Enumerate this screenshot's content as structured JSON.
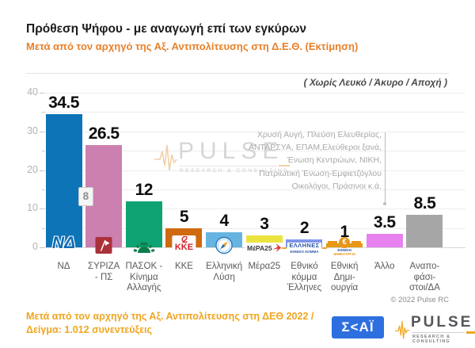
{
  "header": {
    "title": "Πρόθεση Ψήφου - με αναγωγή επί των εγκύρων",
    "subtitle": "Μετά από τον αρχηγό της Αξ. Αντιπολίτευσης στη Δ.Ε.Θ.  (Εκτίμηση)",
    "note": "( Χωρίς Λευκό / Άκυρο / Αποχή )"
  },
  "chart_data": {
    "type": "bar",
    "title": "Πρόθεση Ψήφου - με αναγωγή επί των εγκύρων",
    "subtitle": "Μετά από τον αρχηγό της Αξ. Αντιπολίτευσης στη Δ.Ε.Θ. (Εκτίμηση)",
    "ylim": [
      0,
      40
    ],
    "yticks_major": [
      "0",
      "10",
      "20",
      "30",
      "40"
    ],
    "ytick_minor_step": 5,
    "grid": "horizontal every 5, light gray",
    "legend": "none",
    "categories": [
      "ΝΔ",
      "ΣΥΡΙΖΑ - ΠΣ",
      "ΠΑΣΟΚ - Κίνημα Αλλαγής",
      "ΚΚΕ",
      "Ελληνική Λύση",
      "Μέρα25",
      "Εθνικό κόμμα Έλληνες",
      "Εθνική Δημιουργία",
      "Άλλο",
      "Αναποφάσιστοι/ΔΑ"
    ],
    "category_display": [
      "ΝΔ",
      "ΣΥΡΙΖΑ\n- ΠΣ",
      "ΠΑΣΟΚ -\nΚίνημα\nΑλλαγής",
      "ΚΚΕ",
      "Ελληνική\nΛύση",
      "Μέρα25",
      "Εθνικό\nκόμμα\nΈλληνες",
      "Εθνική\nΔημι-\nουργία",
      "Άλλο",
      "Αναπο-\nφάσι-\nστοι/ΔΑ"
    ],
    "values": [
      34.5,
      26.5,
      12,
      5,
      4,
      3,
      2,
      1,
      3.5,
      8.5
    ],
    "value_labels": [
      "34.5",
      "26.5",
      "12",
      "5",
      "4",
      "3",
      "2",
      "1",
      "3.5",
      "8.5"
    ],
    "bar_colors": [
      "#0e74b8",
      "#cc80b0",
      "#0fa374",
      "#cf6a10",
      "#68b4e0",
      "#ece43e",
      "#7e95e8",
      "#e39a10",
      "#e781ef",
      "#a6a6a6"
    ],
    "bar_logo_icons": [
      "nd-party-logo",
      "syriza-party-logo",
      "pasok-party-logo",
      "kke-party-logo",
      "elliniki-lysi-party-logo",
      "mera25-party-logo",
      "ellines-party-logo",
      "ethniki-dimiourgia-party-logo",
      null,
      null
    ],
    "gap_label": {
      "text": "8",
      "between": [
        "ΝΔ",
        "ΣΥΡΙΖΑ - ΠΣ"
      ]
    },
    "annotation": {
      "target": "Άλλο",
      "lines": [
        "Χρυσή Αυγή, Πλεύση Ελευθερίας,",
        "ΑΝΤΑΡΣΥΑ, ΕΠΑΜ,Ελεύθεροι ξανά,",
        "Ένωση Κεντρώων,  ΝΙΚΗ,",
        "Πατριωτική Ένωση-Εμφιετζόγλου",
        "Οικολόγοι, Πράσινοι  κ.ά."
      ]
    }
  },
  "copyright": "© 2022 Pulse RC",
  "footer": {
    "line1": "Μετά από τον αρχηγό της Αξ. Αντιπολίτευσης στη ΔΕΘ  2022  /",
    "line2": "Δείγμα:  1.012 συνεντεύξεις"
  },
  "brand": {
    "skai_label": "Σ<ΑΪ",
    "pulse_label": "PULSE",
    "pulse_sub": "RESEARCH & CONSULTING"
  },
  "watermark": {
    "label": "PULSE",
    "sub": "RESEARCH & CONSULTING"
  },
  "colors": {
    "accent_orange": "#e8802a",
    "footer_orange": "#f0a51f",
    "skai_blue": "#2e6fe0"
  }
}
